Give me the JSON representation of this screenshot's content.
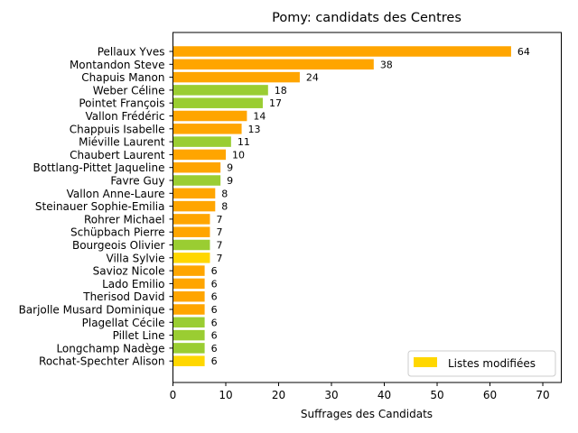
{
  "chart_data": {
    "type": "bar",
    "orientation": "horizontal",
    "title": "Pomy: candidats des Centres",
    "xlabel": "Suffrages des Candidats",
    "ylabel": "",
    "xlim": [
      0,
      73.5
    ],
    "xticks": [
      0,
      10,
      20,
      30,
      40,
      50,
      60,
      70
    ],
    "grid": false,
    "legend": {
      "placement": "bottom-right",
      "entries": [
        {
          "label": "Listes modifiées",
          "color": "#FFD700"
        }
      ]
    },
    "categories": [
      "Pellaux Yves",
      "Montandon Steve",
      "Chapuis Manon",
      "Weber Céline",
      "Pointet François",
      "Vallon Frédéric",
      "Chappuis Isabelle",
      "Miéville Laurent",
      "Chaubert Laurent",
      "Bottlang-Pittet Jaqueline",
      "Favre Guy",
      "Vallon Anne-Laure",
      "Steinauer Sophie-Emilia",
      "Rohrer Michael",
      "Schüpbach Pierre",
      "Bourgeois Olivier",
      "Villa Sylvie",
      "Savioz Nicole",
      "Lado Emilio",
      "Therisod David",
      "Barjolle Musard Dominique",
      "Plagellat Cécile",
      "Pillet Line",
      "Longchamp Nadège",
      "Rochat-Spechter Alison"
    ],
    "values": [
      64,
      38,
      24,
      18,
      17,
      14,
      13,
      11,
      10,
      9,
      9,
      8,
      8,
      7,
      7,
      7,
      7,
      6,
      6,
      6,
      6,
      6,
      6,
      6,
      6
    ],
    "colors": [
      "#FFA500",
      "#FFA500",
      "#FFA500",
      "#9ACD32",
      "#9ACD32",
      "#FFA500",
      "#FFA500",
      "#9ACD32",
      "#FFA500",
      "#FFA500",
      "#9ACD32",
      "#FFA500",
      "#FFA500",
      "#FFA500",
      "#FFA500",
      "#9ACD32",
      "#FFD700",
      "#FFA500",
      "#FFA500",
      "#FFA500",
      "#FFA500",
      "#9ACD32",
      "#9ACD32",
      "#9ACD32",
      "#FFD700"
    ]
  }
}
